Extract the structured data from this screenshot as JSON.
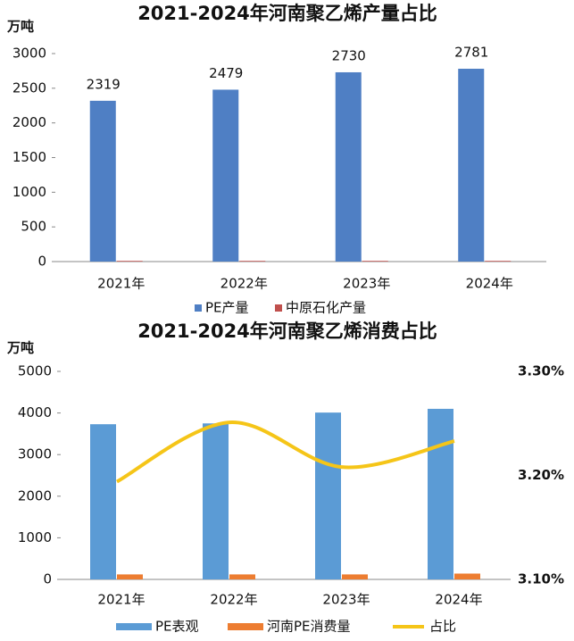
{
  "chart_data": [
    {
      "type": "bar",
      "title": "2021-2024年河南聚乙烯产量占比",
      "y_label": "万吨",
      "categories": [
        "2021年",
        "2022年",
        "2023年",
        "2024年"
      ],
      "series": [
        {
          "name": "PE产量",
          "color": "#4f7fc4",
          "values": [
            2319,
            2479,
            2730,
            2781
          ],
          "data_labels": true
        },
        {
          "name": "中原石化产量",
          "color": "#c0504d",
          "values": [
            10,
            10,
            10,
            10
          ]
        }
      ],
      "ylim": [
        0,
        3000
      ],
      "yticks": [
        0,
        500,
        1000,
        1500,
        2000,
        2500,
        3000
      ],
      "legend": "bottom"
    },
    {
      "type": "bar",
      "title": "2021-2024年河南聚乙烯消费占比",
      "y_label": "万吨",
      "categories": [
        "2021年",
        "2022年",
        "2023年",
        "2024年"
      ],
      "series": [
        {
          "name": "PE表观",
          "color": "#5b9bd5",
          "values": [
            3730,
            3750,
            4010,
            4100
          ]
        },
        {
          "name": "河南PE消费量",
          "color": "#ed7d31",
          "values": [
            120,
            120,
            120,
            140
          ]
        },
        {
          "name": "占比",
          "color": "#f5c518",
          "type": "line",
          "axis": "y2",
          "values": [
            3.194,
            3.251,
            3.208,
            3.233
          ]
        }
      ],
      "ylim": [
        0,
        5000
      ],
      "yticks": [
        0,
        1000,
        2000,
        3000,
        4000,
        5000
      ],
      "y2lim": [
        3.1,
        3.3
      ],
      "y2ticks": [
        {
          "value": 3.1,
          "label": "3.10%"
        },
        {
          "value": 3.2,
          "label": "3.20%"
        },
        {
          "value": 3.3,
          "label": "3.30%"
        }
      ],
      "legend": "bottom"
    }
  ]
}
